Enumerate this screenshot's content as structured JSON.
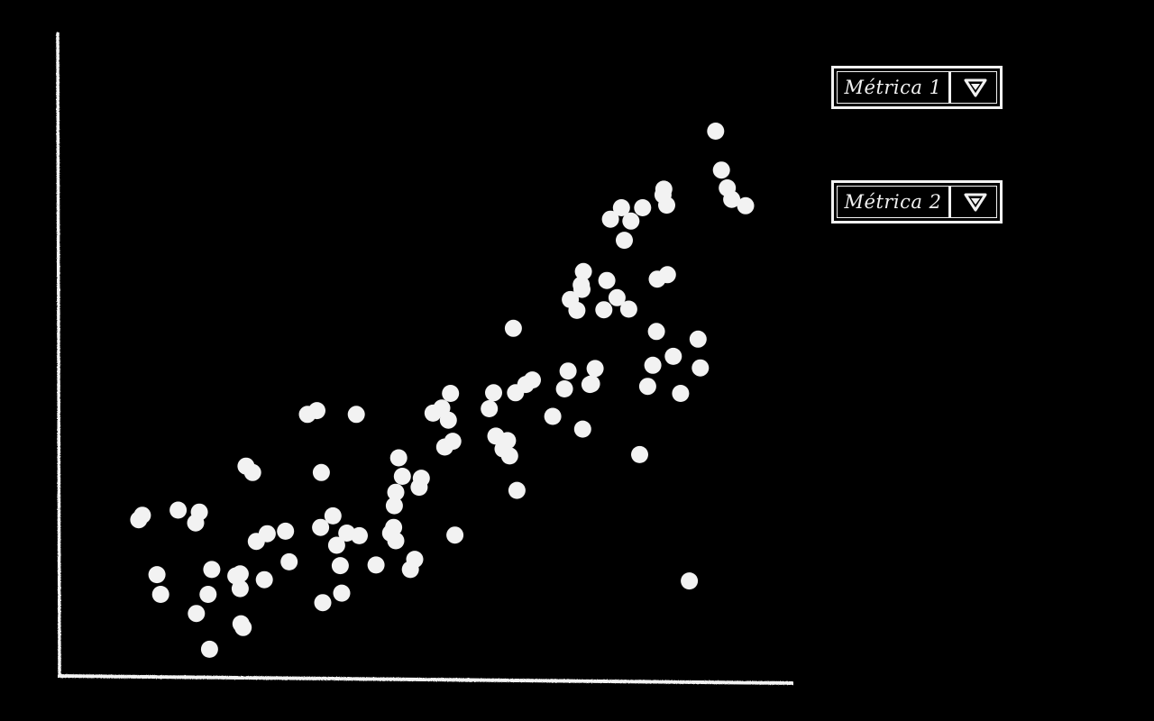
{
  "controls": {
    "metric_1": {
      "label": "Métrica 1",
      "icon": "chevron-down-icon"
    },
    "metric_2": {
      "label": "Métrica 2",
      "icon": "chevron-down-icon"
    }
  },
  "colors": {
    "background": "#000000",
    "foreground": "#f2f2f2"
  },
  "chart_data": {
    "type": "scatter",
    "title": "",
    "xlabel": "",
    "ylabel": "",
    "xlim": [
      0,
      100
    ],
    "ylim": [
      0,
      100
    ],
    "grid": false,
    "tick_labels": false,
    "x": [
      10.6,
      11.1,
      13.1,
      13.6,
      16.0,
      18.4,
      18.5,
      18.9,
      20.1,
      20.3,
      20.6,
      23.9,
      24.5,
      24.5,
      24.6,
      24.9,
      25.3,
      26.2,
      26.7,
      27.8,
      28.2,
      30.7,
      31.2,
      33.7,
      35.0,
      35.5,
      35.6,
      35.8,
      37.2,
      37.7,
      38.2,
      38.4,
      39.1,
      40.4,
      40.8,
      43.1,
      45.1,
      45.5,
      45.6,
      45.8,
      45.8,
      46.2,
      46.7,
      47.8,
      48.4,
      49.0,
      49.3,
      50.9,
      52.1,
      52.5,
      53.0,
      53.3,
      53.6,
      53.9,
      58.6,
      59.2,
      59.5,
      60.5,
      61.1,
      61.4,
      61.9,
      62.2,
      62.4,
      63.6,
      64.5,
      67.3,
      68.9,
      69.4,
      69.7,
      70.6,
      71.2,
      71.3,
      71.4,
      71.5,
      72.4,
      72.6,
      73.1,
      74.3,
      74.7,
      75.2,
      76.1,
      76.7,
      77.1,
      77.7,
      78.0,
      79.2,
      79.6,
      80.3,
      81.0,
      81.5,
      81.6,
      82.4,
      82.5,
      82.9,
      83.0,
      83.8,
      84.8,
      86.0,
      87.2,
      87.5,
      89.6,
      90.4,
      91.2,
      91.8,
      93.7
    ],
    "y": [
      24.2,
      24.9,
      15.6,
      12.5,
      25.7,
      23.7,
      9.5,
      25.4,
      12.5,
      3.9,
      16.4,
      15.4,
      15.7,
      13.4,
      7.9,
      7.3,
      32.6,
      31.6,
      20.8,
      14.8,
      22.0,
      22.4,
      17.6,
      40.7,
      41.3,
      23.0,
      31.6,
      11.2,
      24.8,
      20.2,
      17.0,
      12.7,
      22.1,
      40.7,
      21.7,
      17.1,
      22.1,
      23.0,
      26.4,
      28.5,
      20.9,
      33.9,
      31.0,
      16.4,
      18.0,
      29.3,
      30.7,
      40.9,
      41.7,
      35.6,
      39.8,
      44.0,
      36.5,
      21.8,
      41.6,
      44.1,
      37.3,
      35.3,
      36.6,
      34.2,
      54.2,
      44.1,
      28.8,
      45.4,
      46.1,
      40.4,
      44.7,
      47.5,
      58.7,
      57.0,
      61.0,
      60.3,
      38.4,
      63.1,
      45.4,
      45.5,
      47.9,
      57.1,
      61.7,
      71.3,
      59.0,
      73.1,
      68.0,
      57.2,
      71.0,
      34.4,
      73.1,
      45.1,
      48.4,
      53.7,
      61.9,
      75.1,
      76.0,
      73.5,
      62.6,
      49.8,
      44.0,
      14.6,
      52.5,
      48.0,
      85.1,
      79.0,
      76.2,
      74.4,
      73.4
    ]
  }
}
